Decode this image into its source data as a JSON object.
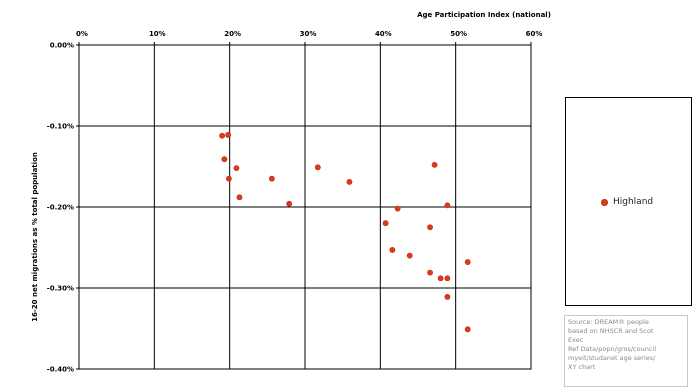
{
  "chart_data": {
    "type": "scatter",
    "title": "",
    "xlabel": "Age Participation Index (national)",
    "ylabel": "16-20 net migrations as % total population",
    "xlim": [
      0,
      60
    ],
    "ylim": [
      -0.4,
      0.0
    ],
    "x_ticks": [
      "0%",
      "10%",
      "20%",
      "30%",
      "40%",
      "50%",
      "60%"
    ],
    "y_ticks": [
      "0.00%",
      "-0.10%",
      "-0.20%",
      "-0.30%",
      "-0.40%"
    ],
    "x_axis_position": "top",
    "grid": true,
    "legend_position": "right",
    "series": [
      {
        "name": "Highland",
        "color": "#e2391a",
        "points": [
          {
            "x": 19.0,
            "y": -0.112
          },
          {
            "x": 19.8,
            "y": -0.111
          },
          {
            "x": 19.3,
            "y": -0.141
          },
          {
            "x": 19.9,
            "y": -0.165
          },
          {
            "x": 20.9,
            "y": -0.152
          },
          {
            "x": 21.3,
            "y": -0.188
          },
          {
            "x": 25.6,
            "y": -0.165
          },
          {
            "x": 27.9,
            "y": -0.196
          },
          {
            "x": 31.7,
            "y": -0.151
          },
          {
            "x": 35.9,
            "y": -0.169
          },
          {
            "x": 40.7,
            "y": -0.22
          },
          {
            "x": 41.6,
            "y": -0.253
          },
          {
            "x": 42.3,
            "y": -0.202
          },
          {
            "x": 43.9,
            "y": -0.26
          },
          {
            "x": 46.6,
            "y": -0.225
          },
          {
            "x": 46.6,
            "y": -0.281
          },
          {
            "x": 47.2,
            "y": -0.148
          },
          {
            "x": 48.0,
            "y": -0.288
          },
          {
            "x": 48.9,
            "y": -0.288
          },
          {
            "x": 48.9,
            "y": -0.198
          },
          {
            "x": 48.9,
            "y": -0.311
          },
          {
            "x": 51.6,
            "y": -0.268
          },
          {
            "x": 51.6,
            "y": -0.351
          }
        ]
      }
    ]
  },
  "source_note": {
    "lines": [
      "Source:  DREAM® people",
      "based on NHSCR and Scot",
      "Exec",
      "Ref Data/popn/gros/council",
      "myeit/studanet age series/",
      "XY chart"
    ]
  }
}
